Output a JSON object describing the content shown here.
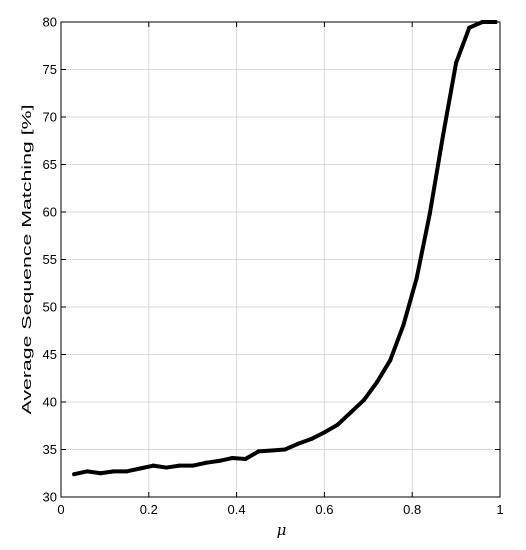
{
  "chart_data": {
    "type": "line",
    "title": "",
    "xlabel": "μ",
    "ylabel": "Average Sequence Matching [%]",
    "xlim": [
      0,
      1
    ],
    "ylim": [
      30,
      80
    ],
    "grid": true,
    "x_ticks": [
      0,
      0.2,
      0.4,
      0.6,
      0.8,
      1
    ],
    "x_tick_labels": [
      "0",
      "0.2",
      "0.4",
      "0.6",
      "0.8",
      "1"
    ],
    "y_ticks": [
      30,
      35,
      40,
      45,
      50,
      55,
      60,
      65,
      70,
      75,
      80
    ],
    "y_tick_labels": [
      "30",
      "35",
      "40",
      "45",
      "50",
      "55",
      "60",
      "65",
      "70",
      "75",
      "80"
    ],
    "line_color": "#000000",
    "series": [
      {
        "x": [
          0.03,
          0.06,
          0.09,
          0.12,
          0.15,
          0.18,
          0.21,
          0.24,
          0.27,
          0.3,
          0.33,
          0.36,
          0.39,
          0.42,
          0.45,
          0.48,
          0.51,
          0.54,
          0.57,
          0.6,
          0.63,
          0.66,
          0.69,
          0.72,
          0.75,
          0.78,
          0.81,
          0.84,
          0.87,
          0.9,
          0.93,
          0.96,
          0.99
        ],
        "values": [
          32.4,
          32.7,
          32.5,
          32.7,
          32.7,
          33.0,
          33.3,
          33.1,
          33.3,
          33.3,
          33.6,
          33.8,
          34.1,
          34.0,
          34.8,
          34.9,
          35.0,
          35.6,
          36.1,
          36.8,
          37.6,
          38.9,
          40.2,
          42.1,
          44.4,
          48.1,
          53.0,
          59.8,
          68.0,
          75.7,
          79.4,
          80.0,
          80.0
        ]
      }
    ]
  }
}
